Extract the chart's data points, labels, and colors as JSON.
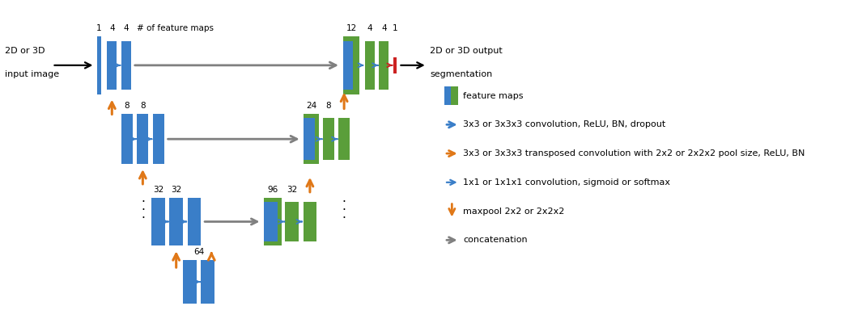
{
  "blue": "#3a7ec8",
  "green": "#5a9e3a",
  "orange": "#e07818",
  "red": "#cc2222",
  "gray": "#808080",
  "bg": "#ffffff",
  "legend": [
    "feature maps",
    "3x3 or 3x3x3 convolution, ReLU, BN, dropout",
    "3x3 or 3x3x3 transposed convolution with 2x2 or 2x2x2 pool size, ReLU, BN",
    "1x1 or 1x1x1 convolution, sigmoid or softmax",
    "maxpool 2x2 or 2x2x2",
    "concatenation"
  ]
}
